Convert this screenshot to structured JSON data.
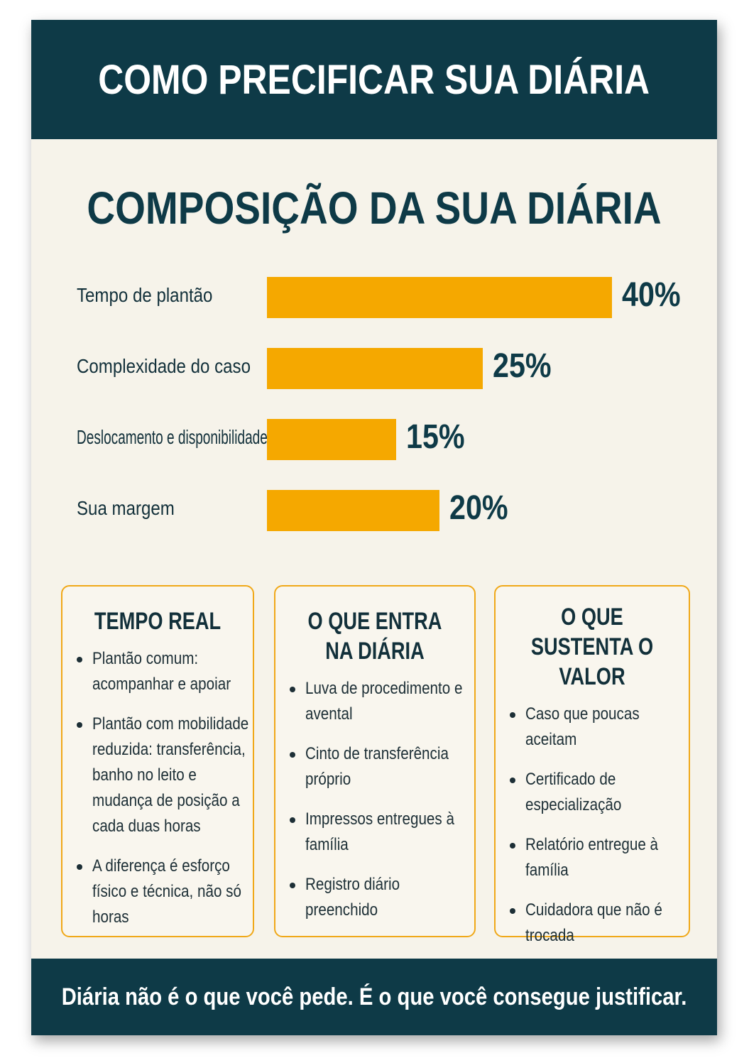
{
  "header": {
    "title": "COMO PRECIFICAR SUA DIÁRIA"
  },
  "chart_data": {
    "type": "bar",
    "orientation": "horizontal",
    "title": "COMPOSIÇÃO DA SUA DIÁRIA",
    "categories": [
      "Tempo de plantão",
      "Complexidade do caso",
      "Deslocamento e disponibilidade",
      "Sua margem"
    ],
    "values": [
      40,
      25,
      15,
      20
    ],
    "value_labels": [
      "40%",
      "25%",
      "15%",
      "20%"
    ],
    "unit": "%",
    "xlim": [
      0,
      40
    ],
    "grid": false,
    "bar_color": "#f5a800"
  },
  "cards": [
    {
      "title": "TEMPO REAL",
      "items": [
        "Plantão comum: acompanhar e apoiar",
        "Plantão com mobilidade reduzida: transferência, banho no leito e mudança de posição a cada duas horas",
        "A diferença é esforço físico e técnica, não só horas"
      ]
    },
    {
      "title": "O QUE ENTRA NA DIÁRIA",
      "items": [
        "Luva de procedimento e avental",
        "Cinto de transferência próprio",
        "Impressos entregues à família",
        "Registro diário preenchido"
      ]
    },
    {
      "title": "O QUE SUSTENTA O VALOR",
      "items": [
        "Caso que poucas aceitam",
        "Certificado de especialização",
        "Relatório entregue à família",
        "Cuidadora que não é trocada"
      ]
    }
  ],
  "footer": {
    "tagline": "Diária não é o que você pede. É o que você consegue justificar."
  },
  "colors": {
    "navy": "#0e3a47",
    "accent": "#f5a800",
    "background": "#f6f3ea"
  }
}
